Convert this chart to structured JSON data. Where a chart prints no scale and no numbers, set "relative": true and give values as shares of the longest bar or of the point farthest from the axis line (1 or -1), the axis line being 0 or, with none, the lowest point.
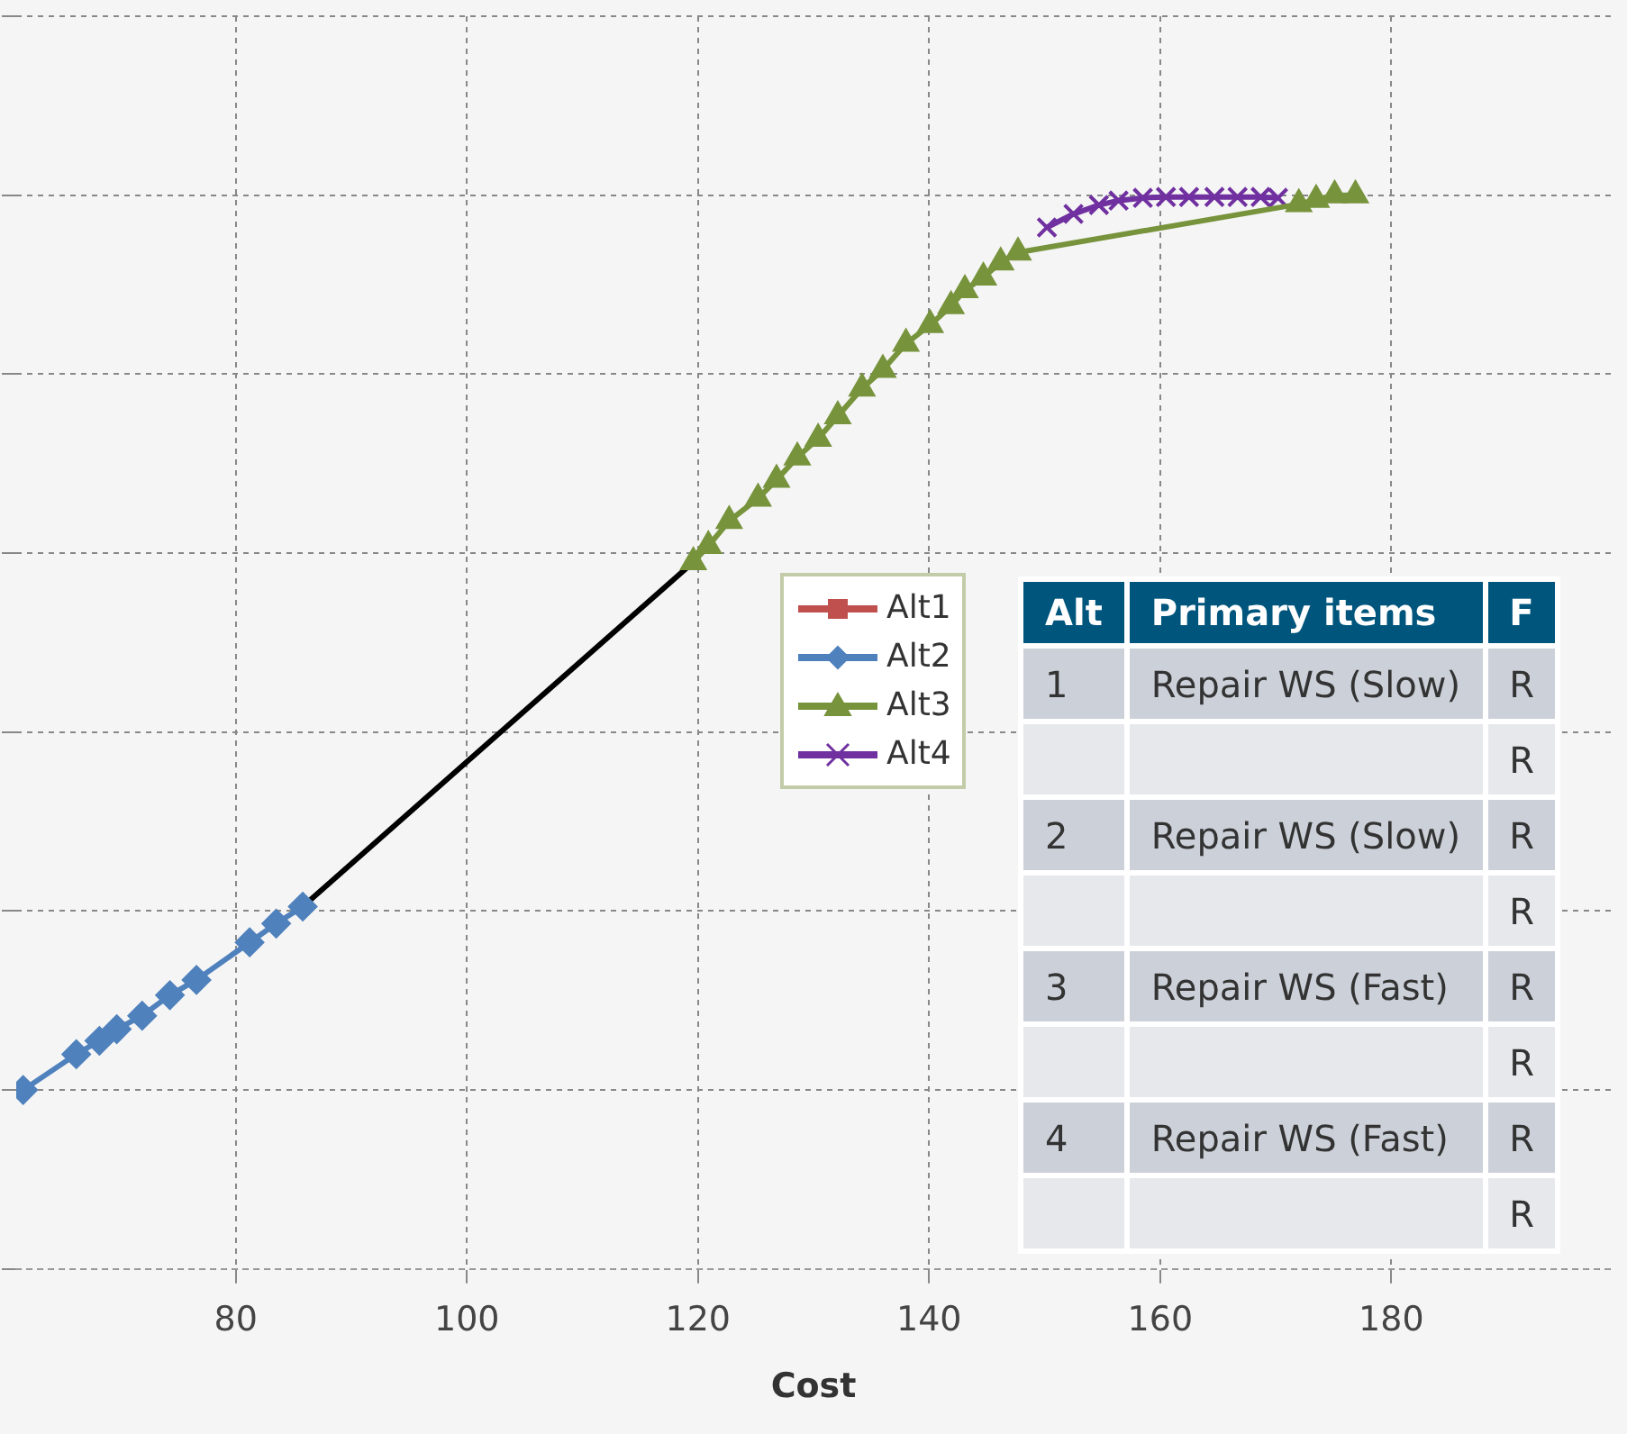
{
  "chart_data": {
    "type": "line",
    "xlabel": "Cost",
    "relative": true,
    "xlim": [
      61,
      199
    ],
    "xticks": [
      80,
      100,
      120,
      140,
      160,
      180
    ],
    "grid": true,
    "legend": "center",
    "tick_labels": "x",
    "line_style": "solid",
    "series": [
      {
        "name": "Alt1",
        "color": "#c0504d",
        "marker": "square"
      },
      {
        "name": "Alt2",
        "color": "#4f81bd",
        "marker": "diamond",
        "x": [
          61.6,
          66.2,
          68.2,
          69.7,
          71.9,
          74.3,
          76.6,
          81.2,
          83.5,
          85.8
        ],
        "values": [
          0,
          0.04,
          0.055,
          0.068,
          0.083,
          0.106,
          0.123,
          0.165,
          0.186,
          0.205
        ]
      },
      {
        "name": "Alt3",
        "color": "#77933c",
        "marker": "triangle",
        "x": [
          119.6,
          120.9,
          122.7,
          125.2,
          126.8,
          128.6,
          130.4,
          132.1,
          134.2,
          136.0,
          138.0,
          140.1,
          141.9,
          143.1,
          144.7,
          146.2,
          147.7,
          172.0,
          173.5,
          175.1,
          176.9
        ],
        "values": [
          0.59,
          0.608,
          0.636,
          0.661,
          0.682,
          0.707,
          0.728,
          0.753,
          0.784,
          0.805,
          0.834,
          0.855,
          0.876,
          0.894,
          0.908,
          0.925,
          0.936,
          0.99,
          0.995,
          1,
          1
        ]
      },
      {
        "name": "Alt4",
        "color": "#7030a0",
        "marker": "cross",
        "x": [
          150.2,
          152.5,
          154.7,
          156.4,
          158.5,
          160.5,
          162.5,
          164.7,
          166.7,
          168.7,
          170.2
        ],
        "values": [
          0.964,
          0.979,
          0.989,
          0.994,
          0.997,
          0.998,
          0.998,
          0.998,
          0.998,
          0.998,
          0.997
        ]
      },
      {
        "color": "#000000",
        "marker": "none",
        "x": [
          85.8,
          119.6
        ],
        "values": [
          0.205,
          0.59
        ]
      }
    ],
    "annotations": [
      "Alt",
      "Primary items",
      "F",
      "1",
      "Repair WS (Slow)",
      "R",
      "R",
      "2",
      "Repair WS (Slow)",
      "R",
      "R",
      "3",
      "Repair WS (Fast)",
      "R",
      "R",
      "4",
      "Repair WS (Fast)",
      "R",
      "R"
    ]
  }
}
